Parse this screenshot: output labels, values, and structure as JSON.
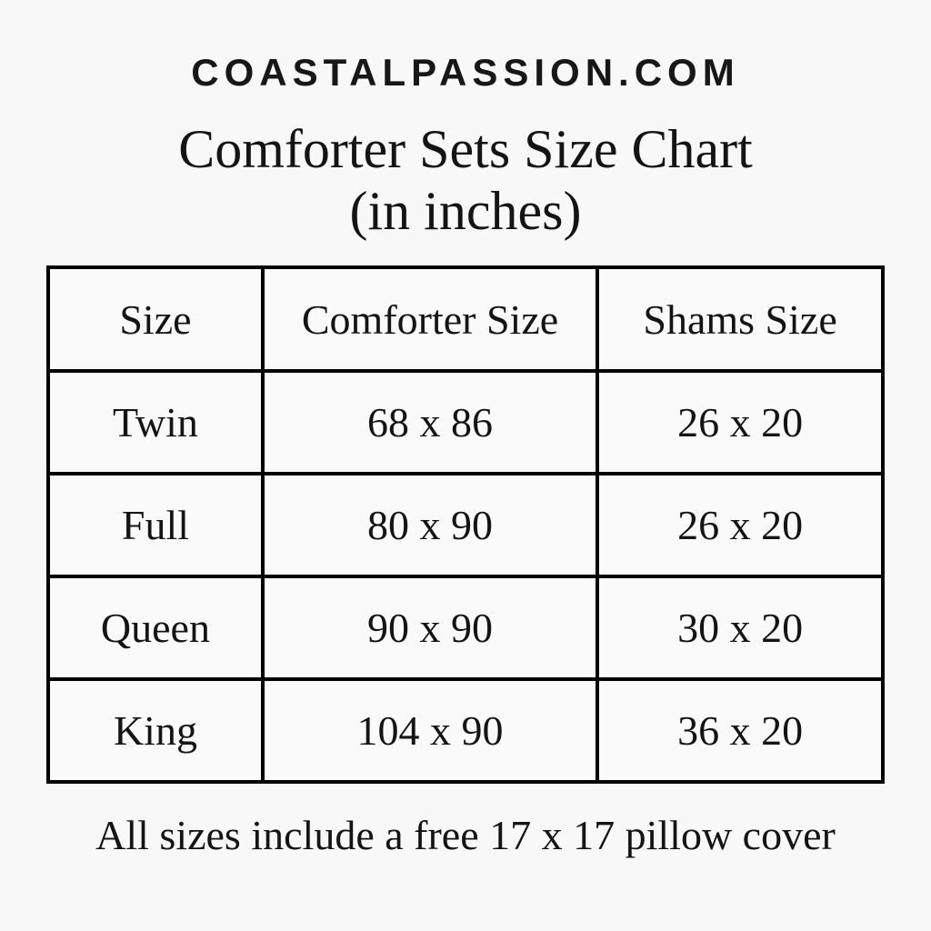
{
  "page": {
    "brand": "COASTALPASSION.COM",
    "title_line1": "Comforter Sets Size Chart",
    "title_line2": "(in inches)",
    "footer_note": "All sizes include a free 17 x 17 pillow cover"
  },
  "colors": {
    "background": "#f8f8f8",
    "text": "#141414",
    "table_border": "#000000"
  },
  "chart_data": {
    "type": "table",
    "title": "Comforter Sets Size Chart (in inches)",
    "source_brand": "COASTALPASSION.COM",
    "columns": [
      "Size",
      "Comforter Size",
      "Shams Size"
    ],
    "rows": [
      [
        "Twin",
        "68 x 86",
        "26 x 20"
      ],
      [
        "Full",
        "80 x 90",
        "26 x 20"
      ],
      [
        "Queen",
        "90 x 90",
        "30 x 20"
      ],
      [
        "King",
        "104 x 90",
        "36 x 20"
      ]
    ],
    "units": "inches",
    "note": "All sizes include a free 17 x 17 pillow cover"
  }
}
